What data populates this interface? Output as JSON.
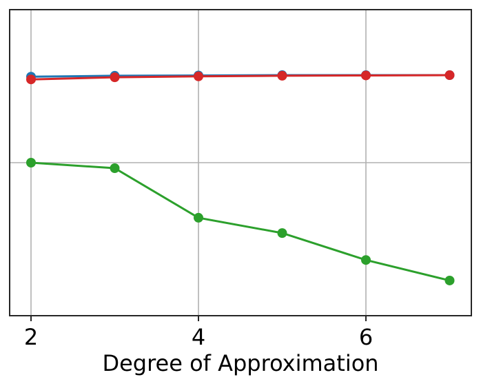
{
  "chart_data": {
    "type": "line",
    "title": "",
    "xlabel": "Degree of Approximation",
    "ylabel": "",
    "x": [
      2,
      3,
      4,
      5,
      6,
      7
    ],
    "xticks": [
      2,
      4,
      6
    ],
    "xtick_labels": [
      "2",
      "4",
      "6"
    ],
    "xlim": [
      1.74,
      7.25
    ],
    "yticks_visible": false,
    "ylim": [
      0,
      1
    ],
    "y_gridline_values": [
      0.5
    ],
    "grid": true,
    "legend": null,
    "series": [
      {
        "name": "blue",
        "color": "#1f77b4",
        "marker": "circle",
        "values": [
          0.781,
          0.784,
          0.785,
          0.786,
          0.786,
          0.786
        ]
      },
      {
        "name": "red",
        "color": "#d62728",
        "marker": "circle",
        "values": [
          0.772,
          0.779,
          0.782,
          0.784,
          0.785,
          0.786
        ]
      },
      {
        "name": "green",
        "color": "#2ca02c",
        "marker": "circle",
        "values": [
          0.5,
          0.482,
          0.32,
          0.27,
          0.182,
          0.115
        ]
      }
    ]
  },
  "axes": {
    "xlabel": "Degree of Approximation",
    "xtick_labels": [
      "2",
      "4",
      "6"
    ]
  }
}
